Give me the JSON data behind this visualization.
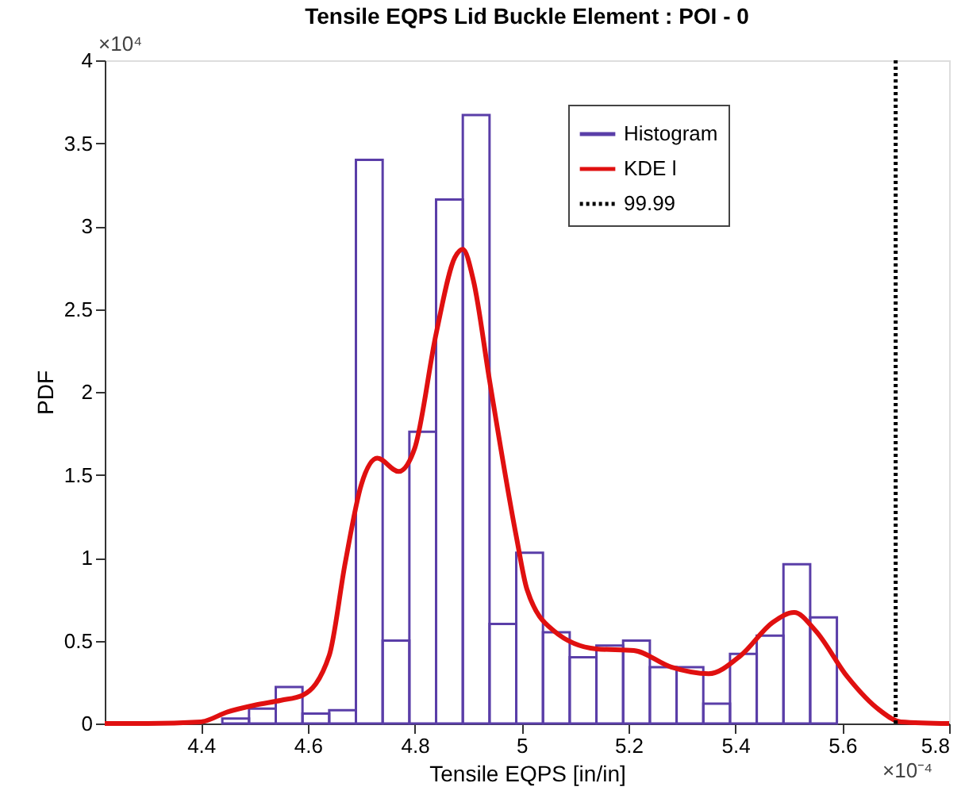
{
  "chart_data": {
    "type": "histogram",
    "title": "Tensile EQPS Lid Buckle Element : POI - 0",
    "xlabel": "Tensile EQPS [in/in]",
    "ylabel": "PDF",
    "series": [
      {
        "name": "Histogram",
        "color": "#5a3ea8",
        "bins": [
          4.44,
          4.49,
          4.54,
          4.59,
          4.64,
          4.69,
          4.74,
          4.79,
          4.84,
          4.89,
          4.94,
          4.99,
          5.04,
          5.09,
          5.14,
          5.19,
          5.24,
          5.29,
          5.34,
          5.39,
          5.44,
          5.49,
          5.54,
          5.59
        ],
        "values": [
          0.03,
          0.09,
          0.22,
          0.06,
          0.08,
          3.4,
          0.5,
          1.76,
          3.16,
          3.67,
          0.6,
          1.03,
          0.55,
          0.4,
          0.47,
          0.5,
          0.34,
          0.34,
          0.12,
          0.42,
          0.53,
          0.96,
          0.64
        ]
      },
      {
        "name": "KDE l",
        "type": "line",
        "color": "#e01010",
        "line_style": "solid",
        "x": [
          4.22,
          4.3,
          4.4,
          4.45,
          4.5,
          4.55,
          4.59,
          4.64,
          4.67,
          4.7,
          4.73,
          4.77,
          4.8,
          4.84,
          4.875,
          4.89,
          4.91,
          4.94,
          4.99,
          5.01,
          5.06,
          5.14,
          5.21,
          5.28,
          5.35,
          5.41,
          5.47,
          5.51,
          5.55,
          5.61,
          5.67,
          5.71,
          5.8
        ],
        "values": [
          0,
          0,
          0.01,
          0.07,
          0.11,
          0.14,
          0.17,
          0.41,
          0.97,
          1.44,
          1.6,
          1.52,
          1.66,
          2.35,
          2.81,
          2.86,
          2.67,
          2.07,
          1.13,
          0.81,
          0.56,
          0.45,
          0.44,
          0.34,
          0.3,
          0.41,
          0.61,
          0.67,
          0.56,
          0.28,
          0.08,
          0.01,
          0
        ]
      },
      {
        "name": "99.99",
        "type": "line",
        "color": "#000000",
        "line_style": "dotted",
        "x": [
          5.7,
          5.7
        ],
        "values": [
          0,
          4
        ]
      }
    ],
    "annotations": [
      "×10⁴",
      "×10⁻⁴"
    ],
    "xlim": [
      4.22,
      5.8
    ],
    "xticks": [
      4.4,
      4.6,
      4.8,
      5,
      5.2,
      5.4,
      5.6,
      5.8
    ],
    "ylim": [
      0,
      4
    ],
    "yticks": [
      0,
      0.5,
      1,
      1.5,
      2,
      2.5,
      3,
      3.5,
      4
    ],
    "grid": false,
    "legend": "top right",
    "marker": "none"
  }
}
